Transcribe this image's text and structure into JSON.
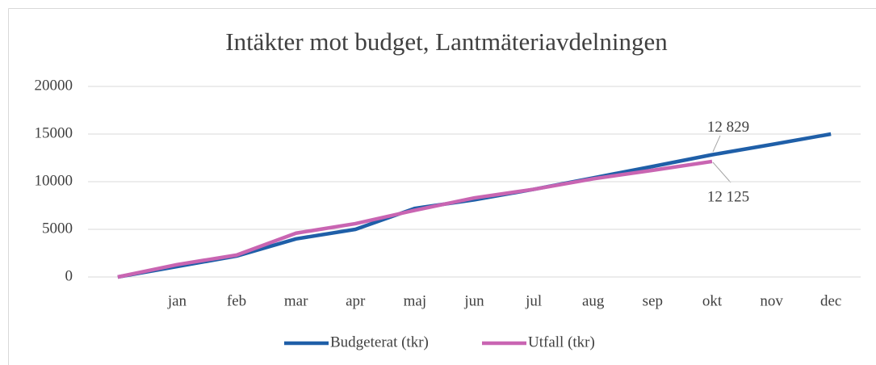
{
  "chart_data": {
    "type": "line",
    "title": "Intäkter mot budget, Lantmäteriavdelningen",
    "categories": [
      null,
      "jan",
      "feb",
      "mar",
      "apr",
      "maj",
      "jun",
      "jul",
      "aug",
      "sep",
      "okt",
      "nov",
      "dec"
    ],
    "series": [
      {
        "name": "Budgeterat (tkr)",
        "color": "#1f5fa8",
        "values": [
          0,
          1100,
          2200,
          4000,
          5000,
          7200,
          8100,
          9200,
          10400,
          11600,
          12829,
          13900,
          15000
        ],
        "value_labels": [
          null,
          null,
          null,
          null,
          null,
          null,
          null,
          null,
          null,
          null,
          "12 829",
          null,
          null
        ]
      },
      {
        "name": "Utfall (tkr)",
        "color": "#c965b2",
        "values": [
          0,
          1300,
          2300,
          4600,
          5600,
          7000,
          8300,
          9200,
          10300,
          11200,
          12125,
          null,
          null
        ],
        "value_labels": [
          null,
          null,
          null,
          null,
          null,
          null,
          null,
          null,
          null,
          null,
          "12 125",
          null,
          null
        ]
      }
    ],
    "ylim": [
      0,
      20000
    ],
    "yticks": [
      0,
      5000,
      10000,
      15000,
      20000
    ],
    "grid": true,
    "legend": "bottom"
  }
}
